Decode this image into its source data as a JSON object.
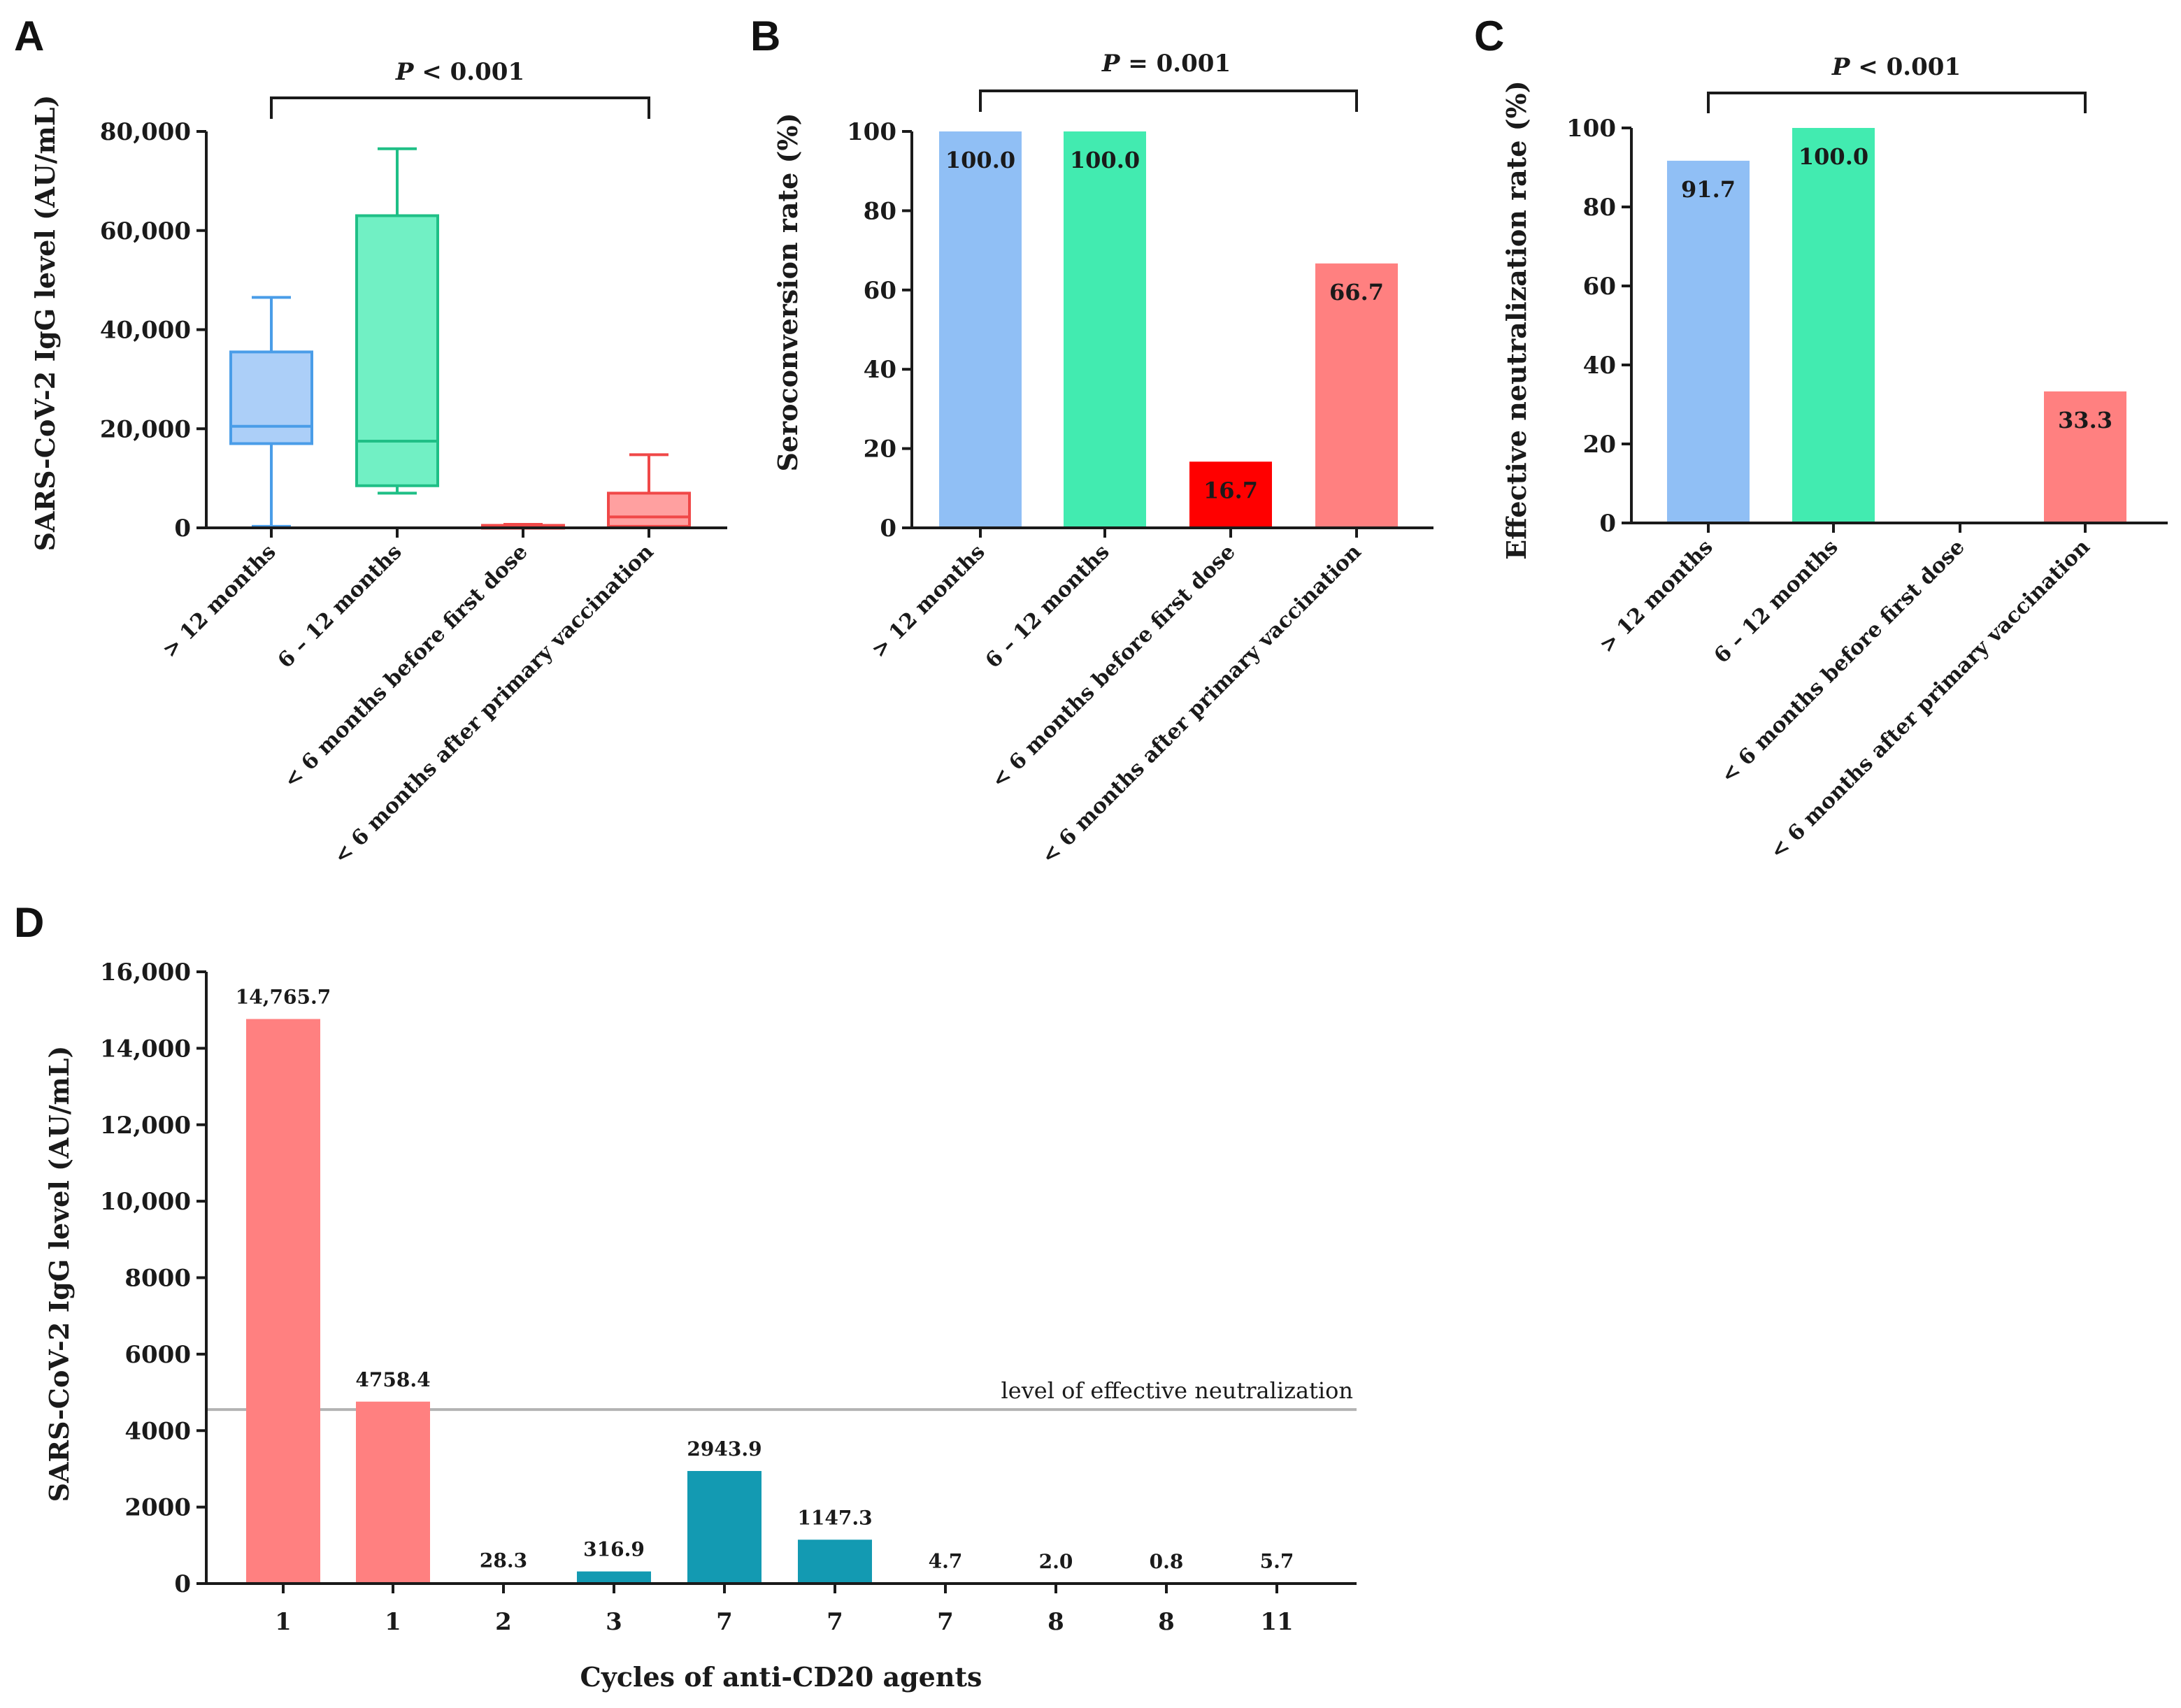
{
  "panels": {
    "A": {
      "letter": "A",
      "ylabel": "SARS-CoV-2 IgG level (AU/mL)",
      "p_label_italic": "P",
      "p_label_rest": " < 0.001",
      "yticks": [
        "0",
        "20,000",
        "40,000",
        "60,000",
        "80,000"
      ],
      "categories": [
        "> 12 months",
        "6 – 12 months",
        "< 6 months before first dose",
        "< 6 months after primary vaccination"
      ]
    },
    "B": {
      "letter": "B",
      "ylabel": "Seroconversion rate (%)",
      "p_label_italic": "P",
      "p_label_rest": " = 0.001",
      "yticks": [
        "0",
        "20",
        "40",
        "60",
        "80",
        "100"
      ],
      "categories": [
        "> 12 months",
        "6 – 12 months",
        "< 6 months before first dose",
        "< 6 months after primary vaccination"
      ],
      "value_labels": [
        "100.0",
        "100.0",
        "16.7",
        "66.7"
      ]
    },
    "C": {
      "letter": "C",
      "ylabel": "Effective neutralization rate (%)",
      "p_label_italic": "P",
      "p_label_rest": " < 0.001",
      "yticks": [
        "0",
        "20",
        "40",
        "60",
        "80",
        "100"
      ],
      "categories": [
        "> 12 months",
        "6 – 12 months",
        "< 6 months before first dose",
        "< 6 months after primary vaccination"
      ],
      "value_labels": [
        "91.7",
        "100.0",
        "",
        "33.3"
      ]
    },
    "D": {
      "letter": "D",
      "ylabel": "SARS-CoV-2 IgG level (AU/mL)",
      "xlabel": "Cycles of anti-CD20 agents",
      "yticks": [
        "0",
        "2000",
        "4000",
        "6000",
        "8000",
        "10,000",
        "12,000",
        "14,000",
        "16,000"
      ],
      "value_labels": [
        "14,765.7",
        "4758.4",
        "28.3",
        "316.9",
        "2943.9",
        "1147.3",
        "4.7",
        "2.0",
        "0.8",
        "5.7"
      ],
      "reference_label": "level of effective neutralization"
    }
  },
  "colors": {
    "blue": "#90bff5",
    "green": "#42ebb0",
    "red": "#ff0000",
    "salmon": "#ff8080",
    "teal": "#139ab2",
    "box_blue_edge": "#4a9de8",
    "box_green_edge": "#1fbf86",
    "box_red_edge": "#f04848",
    "ref_line": "#b3b3b3"
  },
  "chart_data": [
    {
      "panel": "A",
      "type": "box",
      "title": "",
      "xlabel": "",
      "ylabel": "SARS-CoV-2 IgG level (AU/mL)",
      "ylim": [
        0,
        80000
      ],
      "categories": [
        "> 12 months",
        "6 – 12 months",
        "< 6 months before first dose",
        "< 6 months after primary vaccination"
      ],
      "boxes": [
        {
          "min": 300,
          "q1": 17000,
          "median": 20500,
          "q3": 35500,
          "max": 46500
        },
        {
          "min": 7000,
          "q1": 8500,
          "median": 17500,
          "q3": 63000,
          "max": 76500
        },
        {
          "min": 0,
          "q1": 100,
          "median": 300,
          "q3": 500,
          "max": 700
        },
        {
          "min": 0,
          "q1": 300,
          "median": 2200,
          "q3": 7000,
          "max": 14765.7
        }
      ],
      "annotation": "P < 0.001"
    },
    {
      "panel": "B",
      "type": "bar",
      "title": "",
      "xlabel": "",
      "ylabel": "Seroconversion rate (%)",
      "ylim": [
        0,
        100
      ],
      "categories": [
        "> 12 months",
        "6 – 12 months",
        "< 6 months before first dose",
        "< 6 months after primary vaccination"
      ],
      "values": [
        100.0,
        100.0,
        16.7,
        66.7
      ],
      "annotation": "P = 0.001"
    },
    {
      "panel": "C",
      "type": "bar",
      "title": "",
      "xlabel": "",
      "ylabel": "Effective neutralization rate (%)",
      "ylim": [
        0,
        100
      ],
      "categories": [
        "> 12 months",
        "6 – 12 months",
        "< 6 months before first dose",
        "< 6 months after primary vaccination"
      ],
      "values": [
        91.7,
        100.0,
        0,
        33.3
      ],
      "annotation": "P < 0.001"
    },
    {
      "panel": "D",
      "type": "bar",
      "title": "",
      "xlabel": "Cycles of anti-CD20 agents",
      "ylabel": "SARS-CoV-2 IgG level (AU/mL)",
      "ylim": [
        0,
        16000
      ],
      "categories": [
        "1",
        "1",
        "2",
        "3",
        "7",
        "7",
        "7",
        "8",
        "8",
        "11"
      ],
      "values": [
        14765.7,
        4758.4,
        28.3,
        316.9,
        2943.9,
        1147.3,
        4.7,
        2.0,
        0.8,
        5.7
      ],
      "bar_groups": [
        "salmon",
        "salmon",
        "teal",
        "teal",
        "teal",
        "teal",
        "teal",
        "teal",
        "teal",
        "teal"
      ],
      "reference_line": {
        "value": 4550,
        "label": "level of effective neutralization"
      }
    }
  ]
}
